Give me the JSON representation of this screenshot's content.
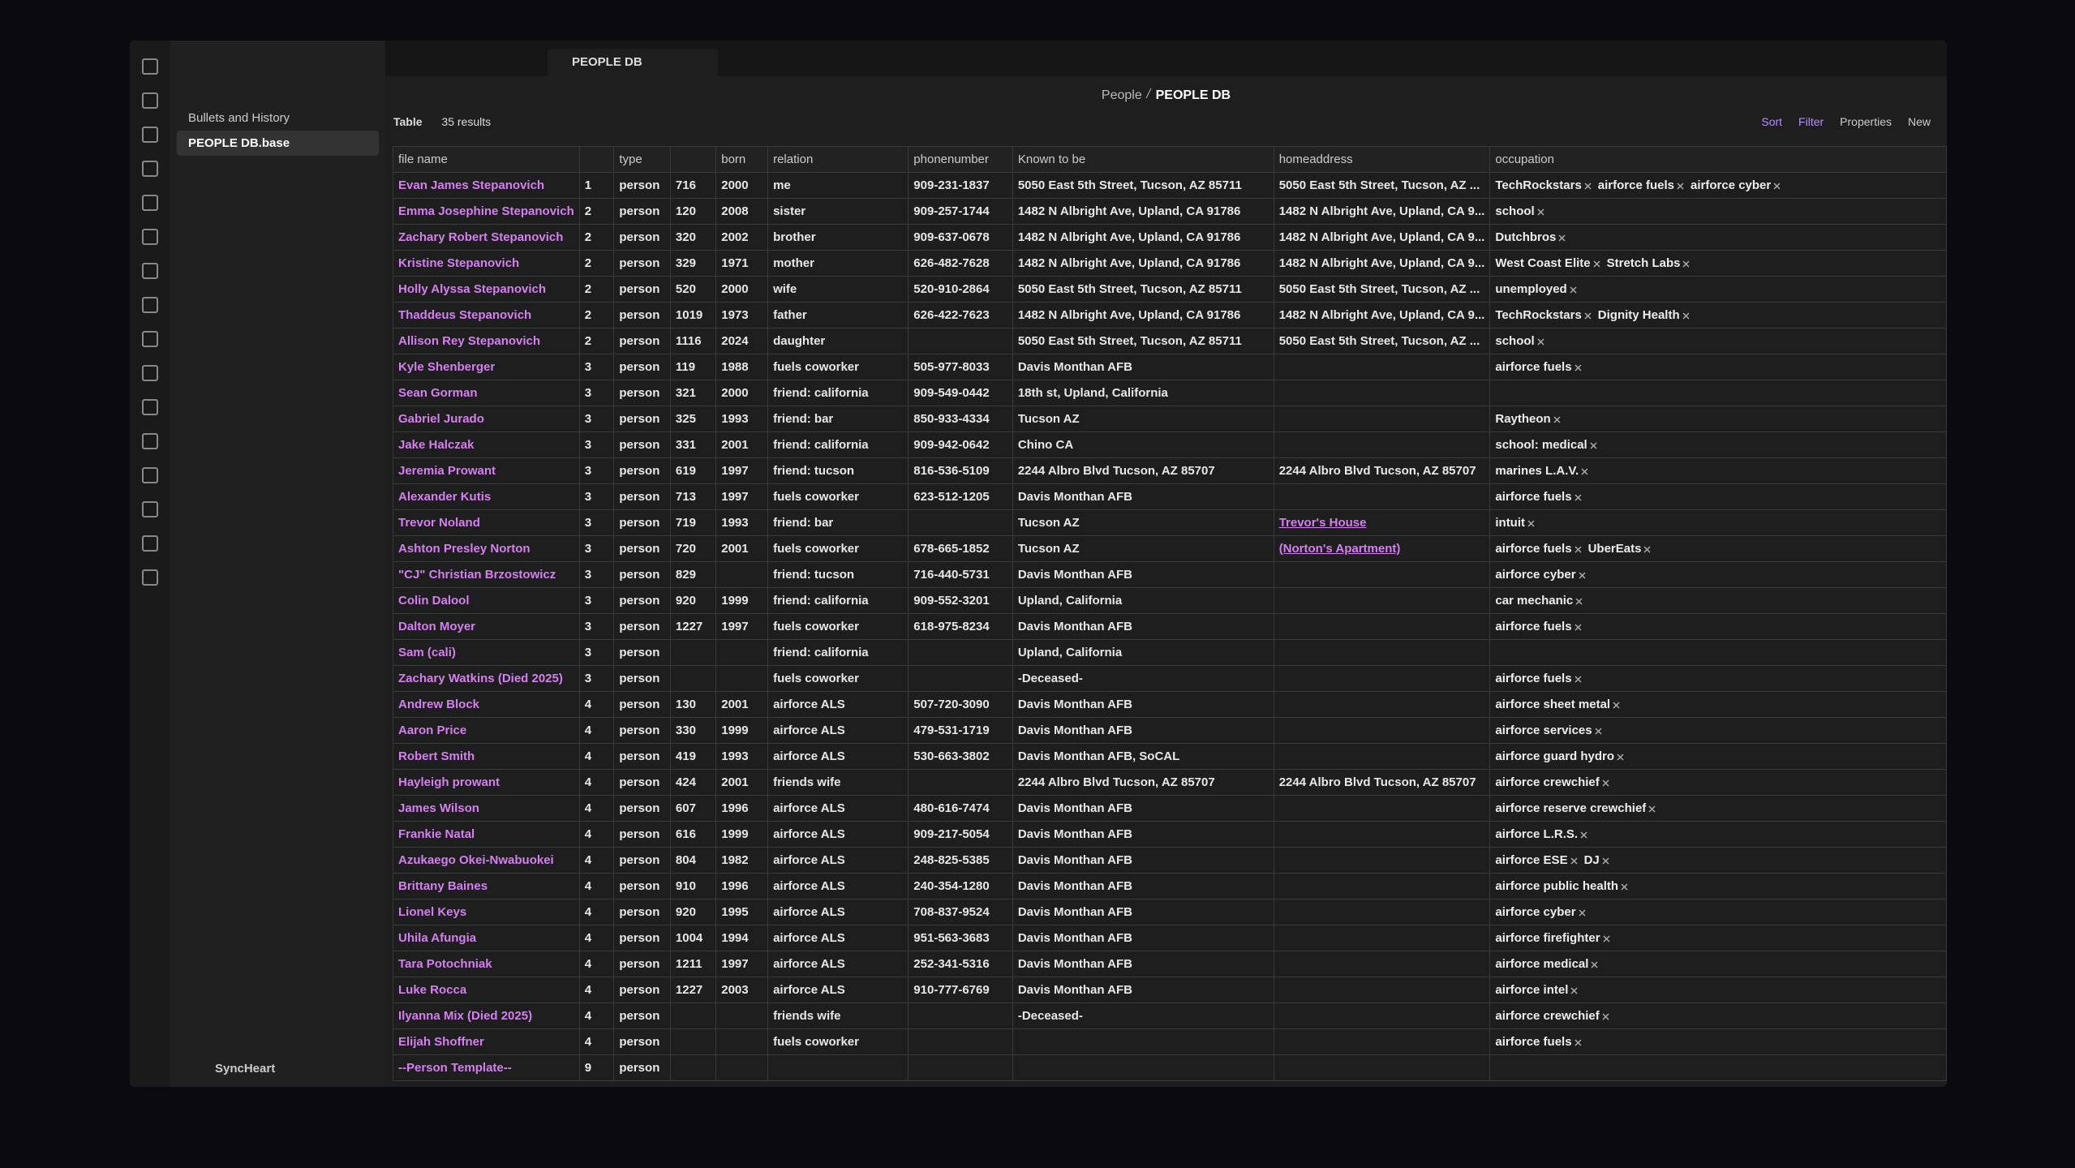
{
  "sidebar": {
    "items": [
      "Bullets and History",
      "PEOPLE DB.base"
    ],
    "selected": 1,
    "vault": "SyncHeart"
  },
  "tab": {
    "title": "PEOPLE DB"
  },
  "breadcrumb": {
    "parent": "People",
    "current": "PEOPLE DB"
  },
  "toolbar": {
    "view": "Table",
    "results": "35 results",
    "actions": [
      "Sort",
      "Filter",
      "Properties",
      "New"
    ]
  },
  "table": {
    "columns": [
      "file name",
      null,
      "type",
      null,
      "born",
      "relation",
      "phonenumber",
      "Known to be",
      "homeaddress",
      "occupation"
    ],
    "rows": [
      [
        "Evan James Stepanovich",
        1,
        "person",
        716,
        2000,
        "me",
        "909-231-1837",
        "5050 East 5th Street, Tucson, AZ 85711",
        "5050 East 5th Street, Tucson, AZ ...",
        [
          "TechRockstars",
          "airforce fuels",
          "airforce cyber"
        ]
      ],
      [
        "Emma Josephine Stepanovich",
        2,
        "person",
        120,
        2008,
        "sister",
        "909-257-1744",
        "1482 N Albright Ave, Upland, CA 91786",
        "1482 N Albright Ave, Upland, CA 9...",
        [
          "school"
        ]
      ],
      [
        "Zachary Robert Stepanovich",
        2,
        "person",
        320,
        2002,
        "brother",
        "909-637-0678",
        "1482 N Albright Ave, Upland, CA 91786",
        "1482 N Albright Ave, Upland, CA 9...",
        [
          "Dutchbros"
        ]
      ],
      [
        "Kristine Stepanovich",
        2,
        "person",
        329,
        1971,
        "mother",
        "626-482-7628",
        "1482 N Albright Ave, Upland, CA 91786",
        "1482 N Albright Ave, Upland, CA 9...",
        [
          "West Coast Elite",
          "Stretch Labs"
        ]
      ],
      [
        "Holly Alyssa Stepanovich",
        2,
        "person",
        520,
        2000,
        "wife",
        "520-910-2864",
        "5050 East 5th Street, Tucson, AZ 85711",
        "5050 East 5th Street, Tucson, AZ ...",
        [
          "unemployed"
        ]
      ],
      [
        "Thaddeus Stepanovich",
        2,
        "person",
        1019,
        1973,
        "father",
        "626-422-7623",
        "1482 N Albright Ave, Upland, CA 91786",
        "1482 N Albright Ave, Upland, CA 9...",
        [
          "TechRockstars",
          "Dignity Health"
        ]
      ],
      [
        "Allison Rey Stepanovich",
        2,
        "person",
        1116,
        2024,
        "daughter",
        null,
        "5050 East 5th Street, Tucson, AZ 85711",
        "5050 East 5th Street, Tucson, AZ ...",
        [
          "school"
        ]
      ],
      [
        "Kyle Shenberger",
        3,
        "person",
        119,
        1988,
        "fuels coworker",
        "505-977-8033",
        "Davis Monthan AFB",
        null,
        [
          "airforce fuels"
        ]
      ],
      [
        "Sean Gorman",
        3,
        "person",
        321,
        2000,
        "friend: california",
        "909-549-0442",
        "18th st, Upland, California",
        null,
        null
      ],
      [
        "Gabriel Jurado",
        3,
        "person",
        325,
        1993,
        "friend: bar",
        "850-933-4334",
        "Tucson AZ",
        null,
        [
          "Raytheon"
        ]
      ],
      [
        "Jake Halczak",
        3,
        "person",
        331,
        2001,
        "friend: california",
        "909-942-0642",
        "Chino CA",
        null,
        [
          "school: medical"
        ]
      ],
      [
        "Jeremia Prowant",
        3,
        "person",
        619,
        1997,
        "friend: tucson",
        "816-536-5109",
        "2244 Albro Blvd Tucson, AZ 85707",
        "2244 Albro Blvd Tucson, AZ 85707",
        [
          "marines L.A.V."
        ]
      ],
      [
        "Alexander Kutis",
        3,
        "person",
        713,
        1997,
        "fuels coworker",
        "623-512-1205",
        "Davis Monthan AFB",
        null,
        [
          "airforce fuels"
        ]
      ],
      [
        "Trevor Noland",
        3,
        "person",
        719,
        1993,
        "friend: bar",
        null,
        "Tucson AZ",
        {
          "link": "Trevor's House"
        },
        [
          "intuit"
        ]
      ],
      [
        "Ashton Presley Norton",
        3,
        "person",
        720,
        2001,
        "fuels coworker",
        "678-665-1852",
        "Tucson AZ",
        {
          "link": "(Norton's Apartment)"
        },
        [
          "airforce fuels",
          "UberEats"
        ]
      ],
      [
        "\"CJ\" Christian Brzostowicz",
        3,
        "person",
        829,
        null,
        "friend: tucson",
        "716-440-5731",
        "Davis Monthan AFB",
        null,
        [
          "airforce cyber"
        ]
      ],
      [
        "Colin Dalool",
        3,
        "person",
        920,
        1999,
        "friend: california",
        "909-552-3201",
        "Upland, California",
        null,
        [
          "car mechanic"
        ]
      ],
      [
        "Dalton Moyer",
        3,
        "person",
        1227,
        1997,
        "fuels coworker",
        "618-975-8234",
        "Davis Monthan AFB",
        null,
        [
          "airforce fuels"
        ]
      ],
      [
        "Sam (cali)",
        3,
        "person",
        null,
        null,
        "friend: california",
        null,
        "Upland, California",
        null,
        null
      ],
      [
        "Zachary Watkins (Died 2025)",
        3,
        "person",
        null,
        null,
        "fuels coworker",
        null,
        "-Deceased-",
        null,
        [
          "airforce fuels"
        ]
      ],
      [
        "Andrew Block",
        4,
        "person",
        130,
        2001,
        "airforce ALS",
        "507-720-3090",
        "Davis Monthan AFB",
        null,
        [
          "airforce sheet metal"
        ]
      ],
      [
        "Aaron Price",
        4,
        "person",
        330,
        1999,
        "airforce ALS",
        "479-531-1719",
        "Davis Monthan AFB",
        null,
        [
          "airforce services"
        ]
      ],
      [
        "Robert Smith",
        4,
        "person",
        419,
        1993,
        "airforce ALS",
        "530-663-3802",
        "Davis Monthan AFB, SoCAL",
        null,
        [
          "airforce guard hydro"
        ]
      ],
      [
        "Hayleigh prowant",
        4,
        "person",
        424,
        2001,
        "friends wife",
        null,
        "2244 Albro Blvd Tucson, AZ 85707",
        "2244 Albro Blvd Tucson, AZ 85707",
        [
          "airforce crewchief"
        ]
      ],
      [
        "James Wilson",
        4,
        "person",
        607,
        1996,
        "airforce ALS",
        "480-616-7474",
        "Davis Monthan AFB",
        null,
        [
          "airforce reserve crewchief"
        ]
      ],
      [
        "Frankie Natal",
        4,
        "person",
        616,
        1999,
        "airforce ALS",
        "909-217-5054",
        "Davis Monthan AFB",
        null,
        [
          "airforce L.R.S."
        ]
      ],
      [
        "Azukaego Okei-Nwabuokei",
        4,
        "person",
        804,
        1982,
        "airforce ALS",
        "248-825-5385",
        "Davis Monthan AFB",
        null,
        [
          "airforce ESE",
          "DJ"
        ]
      ],
      [
        "Brittany Baines",
        4,
        "person",
        910,
        1996,
        "airforce ALS",
        "240-354-1280",
        "Davis Monthan AFB",
        null,
        [
          "airforce public health"
        ]
      ],
      [
        "Lionel Keys",
        4,
        "person",
        920,
        1995,
        "airforce ALS",
        "708-837-9524",
        "Davis Monthan AFB",
        null,
        [
          "airforce cyber"
        ]
      ],
      [
        "Uhila Afungia",
        4,
        "person",
        1004,
        1994,
        "airforce ALS",
        "951-563-3683",
        "Davis Monthan AFB",
        null,
        [
          "airforce firefighter"
        ]
      ],
      [
        "Tara Potochniak",
        4,
        "person",
        1211,
        1997,
        "airforce ALS",
        "252-341-5316",
        "Davis Monthan AFB",
        null,
        [
          "airforce medical"
        ]
      ],
      [
        "Luke Rocca",
        4,
        "person",
        1227,
        2003,
        "airforce ALS",
        "910-777-6769",
        "Davis Monthan AFB",
        null,
        [
          "airforce intel"
        ]
      ],
      [
        "Ilyanna Mix (Died 2025)",
        4,
        "person",
        null,
        null,
        "friends wife",
        null,
        "-Deceased-",
        null,
        [
          "airforce crewchief"
        ]
      ],
      [
        "Elijah Shoffner",
        4,
        "person",
        null,
        null,
        "fuels coworker",
        null,
        null,
        null,
        [
          "airforce fuels"
        ]
      ],
      [
        "--Person Template--",
        9,
        "person",
        null,
        null,
        null,
        null,
        null,
        null,
        null
      ]
    ]
  }
}
